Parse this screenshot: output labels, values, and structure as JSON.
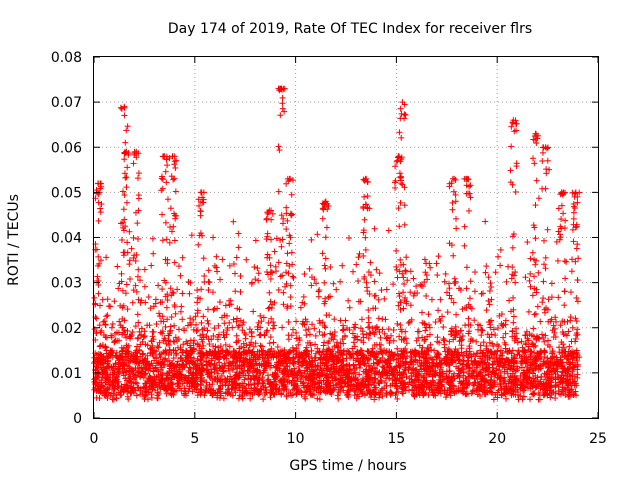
{
  "chart_data": {
    "type": "scatter",
    "title": "Day 174 of 2019, Rate Of TEC Index for receiver flrs",
    "xlabel": "GPS time / hours",
    "ylabel": "ROTI / TECUs",
    "xlim": [
      0,
      25
    ],
    "ylim": [
      0,
      0.08
    ],
    "xticks": [
      "0",
      "5",
      "10",
      "15",
      "20",
      "25"
    ],
    "yticks": [
      "0",
      "0.01",
      "0.02",
      "0.03",
      "0.04",
      "0.05",
      "0.06",
      "0.07",
      "0.08"
    ],
    "grid": true,
    "marker": "+",
    "color": "#ff0000",
    "data_x_range": [
      0,
      24
    ],
    "typical_baseline_range": [
      0.005,
      0.015
    ],
    "peaks": [
      {
        "x": 0.2,
        "y": 0.052
      },
      {
        "x": 1.5,
        "y": 0.069
      },
      {
        "x": 1.6,
        "y": 0.059
      },
      {
        "x": 2.1,
        "y": 0.059
      },
      {
        "x": 3.5,
        "y": 0.058
      },
      {
        "x": 3.9,
        "y": 0.058
      },
      {
        "x": 5.3,
        "y": 0.05
      },
      {
        "x": 8.7,
        "y": 0.046
      },
      {
        "x": 9.3,
        "y": 0.073
      },
      {
        "x": 9.7,
        "y": 0.053
      },
      {
        "x": 11.5,
        "y": 0.048
      },
      {
        "x": 13.5,
        "y": 0.053
      },
      {
        "x": 15.3,
        "y": 0.07
      },
      {
        "x": 15.1,
        "y": 0.058
      },
      {
        "x": 17.8,
        "y": 0.053
      },
      {
        "x": 18.5,
        "y": 0.053
      },
      {
        "x": 20.8,
        "y": 0.066
      },
      {
        "x": 21.9,
        "y": 0.063
      },
      {
        "x": 22.4,
        "y": 0.06
      },
      {
        "x": 23.2,
        "y": 0.05
      },
      {
        "x": 23.9,
        "y": 0.05
      }
    ]
  }
}
